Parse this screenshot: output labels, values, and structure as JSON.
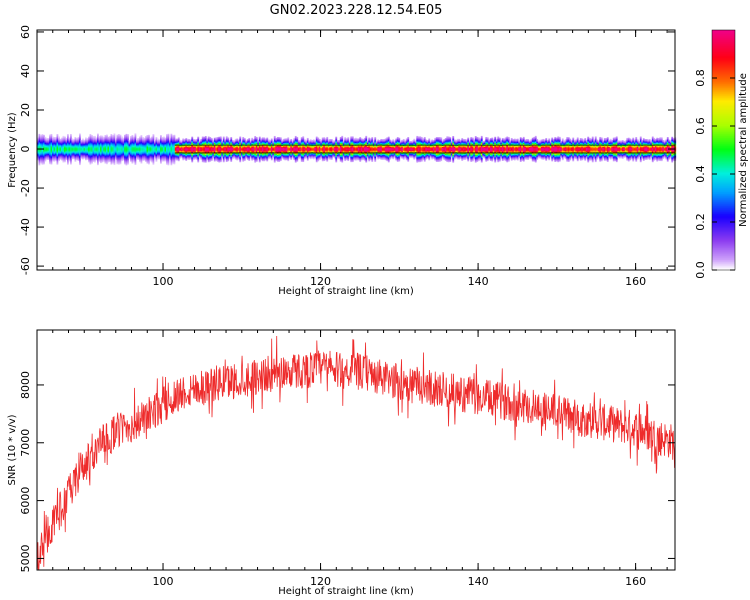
{
  "title": "GN02.2023.228.12.54.E05",
  "colors": {
    "snr_line": "#ee2b2b",
    "axis": "#000000"
  },
  "chart_data": [
    {
      "type": "heatmap",
      "xlabel": "Height of straight line (km)",
      "ylabel": "Frequency (Hz)",
      "xlim": [
        84,
        165
      ],
      "ylim": [
        -62,
        61
      ],
      "xticks": [
        {
          "value": 100,
          "label": "100"
        },
        {
          "value": 120,
          "label": "120"
        },
        {
          "value": 140,
          "label": "140"
        },
        {
          "value": 160,
          "label": "160"
        }
      ],
      "yticks": [
        {
          "value": 60,
          "label": "60"
        },
        {
          "value": 40,
          "label": "40"
        },
        {
          "value": 20,
          "label": "20"
        },
        {
          "value": 0,
          "label": "0"
        },
        {
          "value": -20,
          "label": "-20"
        },
        {
          "value": -40,
          "label": "-40"
        },
        {
          "value": -60,
          "label": "-60"
        }
      ],
      "colorbar": {
        "label": "Normalized spectral amplitude",
        "range": [
          0,
          1
        ],
        "ticks": [
          {
            "value": 0.0,
            "label": "0.0"
          },
          {
            "value": 0.2,
            "label": "0.2"
          },
          {
            "value": 0.4,
            "label": "0.4"
          },
          {
            "value": 0.6,
            "label": "0.6"
          },
          {
            "value": 0.8,
            "label": "0.8"
          }
        ]
      },
      "band": {
        "center_hz": 0,
        "segments": [
          {
            "x_start": 84,
            "x_end": 101.5,
            "peak": 0.45,
            "halfwidth_hz": 5
          },
          {
            "x_start": 101.5,
            "x_end": 165,
            "peak": 0.95,
            "halfwidth_hz": 4
          }
        ]
      }
    },
    {
      "type": "line",
      "xlabel": "Height of straight line (km)",
      "ylabel": "SNR (10 * v/v)",
      "xlim": [
        84,
        165
      ],
      "ylim": [
        4800,
        8950
      ],
      "xticks": [
        {
          "value": 100,
          "label": "100"
        },
        {
          "value": 120,
          "label": "120"
        },
        {
          "value": 140,
          "label": "140"
        },
        {
          "value": 160,
          "label": "160"
        }
      ],
      "yticks": [
        {
          "value": 5000,
          "label": "5000"
        },
        {
          "value": 6000,
          "label": "6000"
        },
        {
          "value": 7000,
          "label": "7000"
        },
        {
          "value": 8000,
          "label": "8000"
        }
      ],
      "series": [
        {
          "x": [
            84,
            86,
            88,
            90,
            92,
            94,
            96,
            98,
            100,
            102,
            104,
            106,
            108,
            110,
            112,
            114,
            116,
            118,
            120,
            122,
            124,
            126,
            128,
            130,
            132,
            134,
            136,
            138,
            140,
            142,
            144,
            146,
            148,
            150,
            152,
            154,
            156,
            158,
            160,
            162,
            164,
            165
          ],
          "y": [
            5000,
            5600,
            6100,
            6600,
            6950,
            7200,
            7300,
            7450,
            7650,
            7850,
            7950,
            8000,
            8050,
            8100,
            8150,
            8200,
            8250,
            8250,
            8300,
            8250,
            8250,
            8200,
            8100,
            8050,
            8000,
            7950,
            7900,
            7850,
            7800,
            7750,
            7700,
            7650,
            7600,
            7550,
            7450,
            7400,
            7350,
            7300,
            7250,
            7150,
            7050,
            7000
          ]
        }
      ]
    }
  ]
}
